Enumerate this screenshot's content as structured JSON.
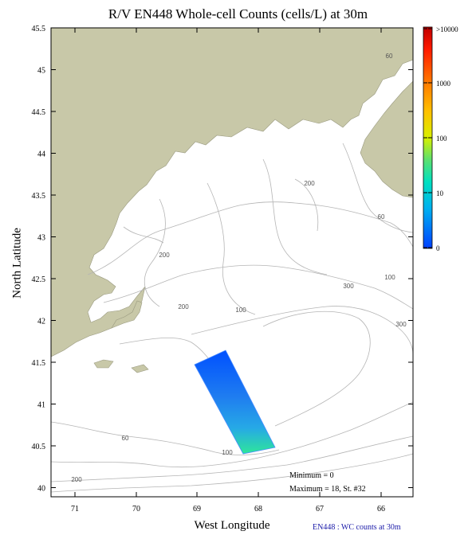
{
  "title": "R/V EN448 Whole-cell Counts (cells/L) at 30m",
  "x_axis": {
    "label": "West Longitude",
    "ticks": [
      "71",
      "70",
      "69",
      "68",
      "67",
      "66"
    ]
  },
  "y_axis": {
    "label": "North Latitude",
    "ticks": [
      "45.5",
      "45",
      "44.5",
      "44",
      "43.5",
      "43",
      "42.5",
      "42",
      "41.5",
      "41",
      "40.5",
      "40"
    ]
  },
  "colorbar": {
    "labels": [
      ">10000",
      "1000",
      "100",
      "10",
      "0"
    ],
    "colors": [
      "#e60000",
      "#ff3300",
      "#ff7a00",
      "#ffc000",
      "#e6f000",
      "#8ae83a",
      "#2ee69a",
      "#00d0e6",
      "#0090ff",
      "#0050ff"
    ]
  },
  "depth_contours": [
    "60",
    "200",
    "60",
    "200",
    "300",
    "100",
    "200",
    "100",
    "300",
    "60",
    "100",
    "200"
  ],
  "stats": {
    "minimum": "Minimum = 0",
    "maximum": "Maximum = 18, St. #32"
  },
  "credit": "EN448 : WC counts at 30m",
  "colors": {
    "land": "#c8c8a8",
    "water": "#ffffff",
    "contour": "#b0b0b0",
    "credit": "#1a1aa8"
  }
}
